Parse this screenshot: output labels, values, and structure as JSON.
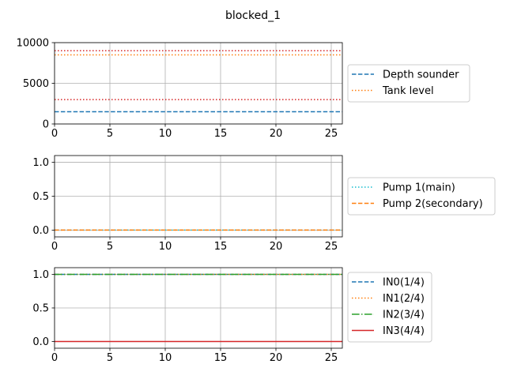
{
  "figure": {
    "title": "blocked_1"
  },
  "chart_data": [
    {
      "type": "line",
      "x_range": [
        0,
        26
      ],
      "ylim": [
        0,
        10000
      ],
      "x_ticks": [
        0,
        5,
        10,
        15,
        20,
        25
      ],
      "y_ticks": [
        0,
        5000,
        10000
      ],
      "x_tick_labels": [
        "0",
        "5",
        "10",
        "15",
        "20",
        "25"
      ],
      "y_tick_labels": [
        "0",
        "5000",
        "10000"
      ],
      "grid": true,
      "legend_position": "right",
      "series": [
        {
          "name": "Depth sounder",
          "color": "#1f77b4",
          "dash": "dashed",
          "x": [
            0,
            26
          ],
          "y": [
            1500,
            1500
          ]
        },
        {
          "name": "Tank level",
          "color": "#ff7f0e",
          "dash": "dotted",
          "x": [
            0,
            26
          ],
          "y": [
            8500,
            8500
          ]
        }
      ],
      "reference_lines": [
        {
          "color": "#d62728",
          "dash": "dotted",
          "y": 9000
        },
        {
          "color": "#d62728",
          "dash": "dotted",
          "y": 3000
        }
      ]
    },
    {
      "type": "line",
      "x_range": [
        0,
        26
      ],
      "ylim": [
        -0.1,
        1.1
      ],
      "x_ticks": [
        0,
        5,
        10,
        15,
        20,
        25
      ],
      "y_ticks": [
        0,
        0.5,
        1
      ],
      "x_tick_labels": [
        "0",
        "5",
        "10",
        "15",
        "20",
        "25"
      ],
      "y_tick_labels": [
        "0.0",
        "0.5",
        "1.0"
      ],
      "grid": true,
      "legend_position": "right",
      "series": [
        {
          "name": "Pump 1(main)",
          "color": "#17becf",
          "dash": "dotted",
          "x": [
            0,
            26
          ],
          "y": [
            0,
            0
          ]
        },
        {
          "name": "Pump 2(secondary)",
          "color": "#ff7f0e",
          "dash": "dashed",
          "x": [
            0,
            26
          ],
          "y": [
            0,
            0
          ]
        }
      ],
      "reference_lines": []
    },
    {
      "type": "line",
      "x_range": [
        0,
        26
      ],
      "ylim": [
        -0.1,
        1.1
      ],
      "x_ticks": [
        0,
        5,
        10,
        15,
        20,
        25
      ],
      "y_ticks": [
        0,
        0.5,
        1
      ],
      "x_tick_labels": [
        "0",
        "5",
        "10",
        "15",
        "20",
        "25"
      ],
      "y_tick_labels": [
        "0.0",
        "0.5",
        "1.0"
      ],
      "grid": true,
      "legend_position": "right",
      "series": [
        {
          "name": "IN0(1/4)",
          "color": "#1f77b4",
          "dash": "dashed",
          "x": [
            0,
            26
          ],
          "y": [
            1,
            1
          ]
        },
        {
          "name": "IN1(2/4)",
          "color": "#ff7f0e",
          "dash": "dotted",
          "x": [
            0,
            26
          ],
          "y": [
            1,
            1
          ]
        },
        {
          "name": "IN2(3/4)",
          "color": "#2ca02c",
          "dash": "dashdot",
          "x": [
            0,
            26
          ],
          "y": [
            1,
            1
          ]
        },
        {
          "name": "IN3(4/4)",
          "color": "#d62728",
          "dash": "solid",
          "x": [
            0,
            26
          ],
          "y": [
            0,
            0
          ]
        }
      ],
      "reference_lines": []
    }
  ]
}
